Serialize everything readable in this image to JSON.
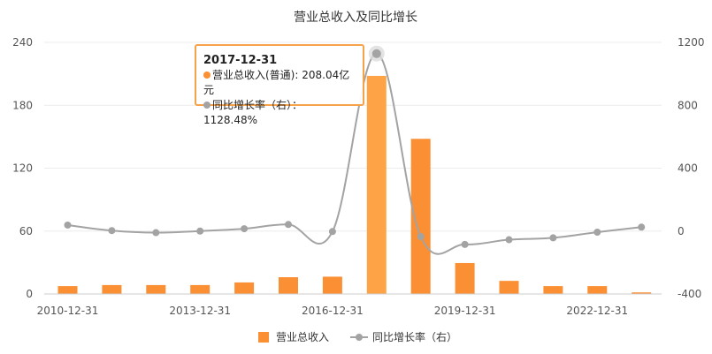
{
  "chart_data": {
    "type": "bar+line",
    "title": "营业总收入及同比增长",
    "x": [
      "2010-12-31",
      "2011-12-31",
      "2012-12-31",
      "2013-12-31",
      "2014-12-31",
      "2015-12-31",
      "2016-12-31",
      "2017-12-31",
      "2018-12-31",
      "2019-12-31",
      "2020-12-31",
      "2021-12-31",
      "2022-12-31",
      "2023-12-31"
    ],
    "x_tick_labels": [
      "2010-12-31",
      "2013-12-31",
      "2016-12-31",
      "2019-12-31",
      "2022-12-31"
    ],
    "series": [
      {
        "name": "营业总收入",
        "type": "bar",
        "axis": "left",
        "color": "#fb8f34",
        "values": [
          7.5,
          8.5,
          8.5,
          8.5,
          11,
          16,
          16.5,
          208.04,
          148,
          29.5,
          12.5,
          7.5,
          7.5,
          1.5
        ]
      },
      {
        "name": "同比增长率（右）",
        "type": "line",
        "axis": "right",
        "color": "#a3a3a3",
        "values": [
          38,
          3,
          -10,
          0,
          15,
          42,
          -3,
          1128.48,
          -35,
          -85,
          -55,
          -43,
          -7,
          25
        ]
      }
    ],
    "y_left": {
      "ylim": [
        0,
        240
      ],
      "ticks": [
        "0",
        "60",
        "120",
        "180",
        "240"
      ]
    },
    "y_right": {
      "ylim": [
        -400,
        1200
      ],
      "ticks": [
        "-400",
        "0",
        "400",
        "800",
        "1200"
      ]
    },
    "grid": true,
    "legend": {
      "position": "bottom",
      "items": [
        "营业总收入",
        "同比增长率（右）"
      ]
    },
    "tooltip": {
      "date": "2017-12-31",
      "line1": "营业总收入(普通): 208.04亿元",
      "line2": "同比增长率（右）：1128.48%",
      "highlight_index": 7,
      "dot1_color": "#fb8f34",
      "dot2_color": "#a3a3a3"
    }
  }
}
